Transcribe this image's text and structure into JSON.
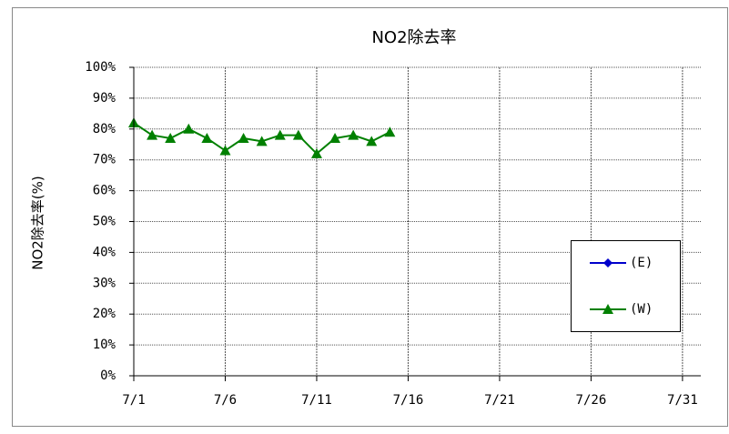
{
  "chart_data": {
    "type": "line",
    "title": "NO2除去率",
    "y_label": "NO2除去率(%)",
    "x": [
      1,
      2,
      3,
      4,
      5,
      6,
      7,
      8,
      9,
      10,
      11,
      12,
      13,
      14,
      15
    ],
    "series": [
      {
        "name": "(E)",
        "color": "#0000cc",
        "marker": "diamond",
        "values": [
          null,
          null,
          null,
          null,
          null,
          null,
          null,
          null,
          null,
          null,
          null,
          null,
          null,
          null,
          null
        ]
      },
      {
        "name": "(W)",
        "color": "#008000",
        "marker": "triangle",
        "values": [
          82,
          78,
          77,
          80,
          77,
          73,
          77,
          76,
          78,
          78,
          72,
          77,
          78,
          76,
          79
        ]
      }
    ],
    "xlim": [
      1,
      32
    ],
    "xticks": [
      {
        "value": 1,
        "label": "7/1"
      },
      {
        "value": 6,
        "label": "7/6"
      },
      {
        "value": 11,
        "label": "7/11"
      },
      {
        "value": 16,
        "label": "7/16"
      },
      {
        "value": 21,
        "label": "7/21"
      },
      {
        "value": 26,
        "label": "7/26"
      },
      {
        "value": 31,
        "label": "7/31"
      }
    ],
    "ylim": [
      0,
      100
    ],
    "yticks": [
      {
        "value": 0,
        "label": "0%"
      },
      {
        "value": 10,
        "label": "10%"
      },
      {
        "value": 20,
        "label": "20%"
      },
      {
        "value": 30,
        "label": "30%"
      },
      {
        "value": 40,
        "label": "40%"
      },
      {
        "value": 50,
        "label": "50%"
      },
      {
        "value": 60,
        "label": "60%"
      },
      {
        "value": 70,
        "label": "70%"
      },
      {
        "value": 80,
        "label": "80%"
      },
      {
        "value": 90,
        "label": "90%"
      },
      {
        "value": 100,
        "label": "100%"
      }
    ],
    "grid": true,
    "legend": "right"
  }
}
